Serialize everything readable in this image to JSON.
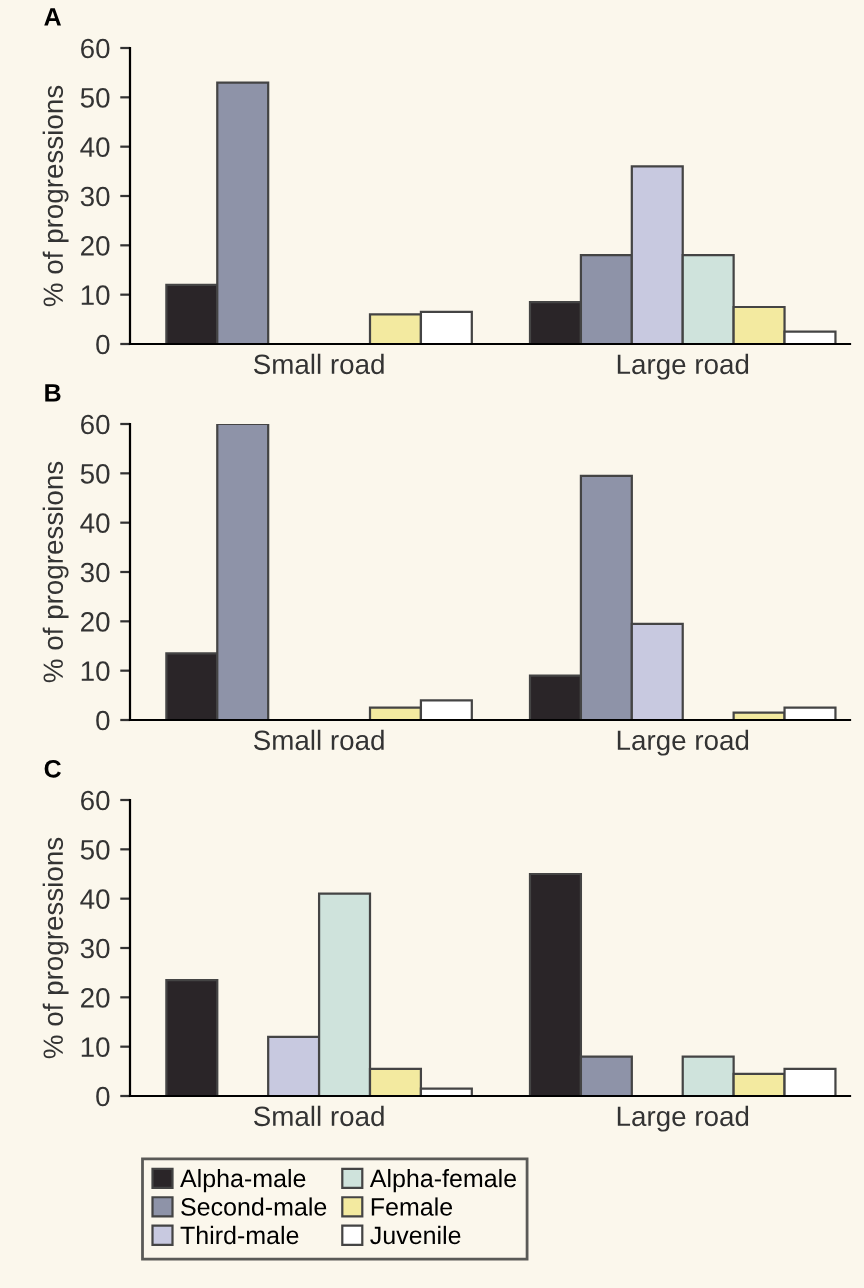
{
  "chart_data": [
    {
      "type": "bar",
      "title": "A",
      "ylabel": "% of progressions",
      "categories": [
        "Small road",
        "Large road"
      ],
      "ylim": [
        0,
        60
      ],
      "yticks": [
        0,
        10,
        20,
        30,
        40,
        50,
        60
      ],
      "grid": false,
      "legend": false,
      "series": [
        {
          "color": "#2a2528",
          "values": [
            12,
            8.5
          ]
        },
        {
          "color": "#8e93a8",
          "values": [
            53,
            18
          ]
        },
        {
          "color": "#c8c9e0",
          "values": [
            0,
            36
          ]
        },
        {
          "color": "#cfe3dc",
          "values": [
            0,
            18
          ]
        },
        {
          "color": "#f3eaa0",
          "values": [
            6,
            7.5
          ]
        },
        {
          "color": "#ffffff",
          "values": [
            6.5,
            2.5
          ]
        }
      ]
    },
    {
      "type": "bar",
      "title": "B",
      "ylabel": "% of progressions",
      "categories": [
        "Small road",
        "Large road"
      ],
      "ylim": [
        0,
        60
      ],
      "yticks": [
        0,
        10,
        20,
        30,
        40,
        50,
        60
      ],
      "grid": false,
      "legend": false,
      "series": [
        {
          "color": "#2a2528",
          "values": [
            13.5,
            9
          ]
        },
        {
          "color": "#8e93a8",
          "values": [
            60,
            49.5
          ]
        },
        {
          "color": "#c8c9e0",
          "values": [
            0,
            19.5
          ]
        },
        {
          "color": "#cfe3dc",
          "values": [
            0,
            0
          ]
        },
        {
          "color": "#f3eaa0",
          "values": [
            2.5,
            1.5
          ]
        },
        {
          "color": "#ffffff",
          "values": [
            4,
            2.5
          ]
        }
      ]
    },
    {
      "type": "bar",
      "title": "C",
      "ylabel": "% of progressions",
      "categories": [
        "Small road",
        "Large road"
      ],
      "ylim": [
        0,
        60
      ],
      "yticks": [
        0,
        10,
        20,
        30,
        40,
        50,
        60
      ],
      "grid": false,
      "legend": "bottom",
      "series": [
        {
          "name": "Alpha-male",
          "color": "#2a2528",
          "values": [
            23.5,
            45
          ]
        },
        {
          "name": "Second-male",
          "color": "#8e93a8",
          "values": [
            0,
            8
          ]
        },
        {
          "name": "Third-male",
          "color": "#c8c9e0",
          "values": [
            12,
            0
          ]
        },
        {
          "name": "Alpha-female",
          "color": "#cfe3dc",
          "values": [
            41,
            8
          ]
        },
        {
          "name": "Female",
          "color": "#f3eaa0",
          "values": [
            5.5,
            4.5
          ]
        },
        {
          "name": "Juvenile",
          "color": "#ffffff",
          "values": [
            1.5,
            5.5
          ]
        }
      ]
    }
  ]
}
